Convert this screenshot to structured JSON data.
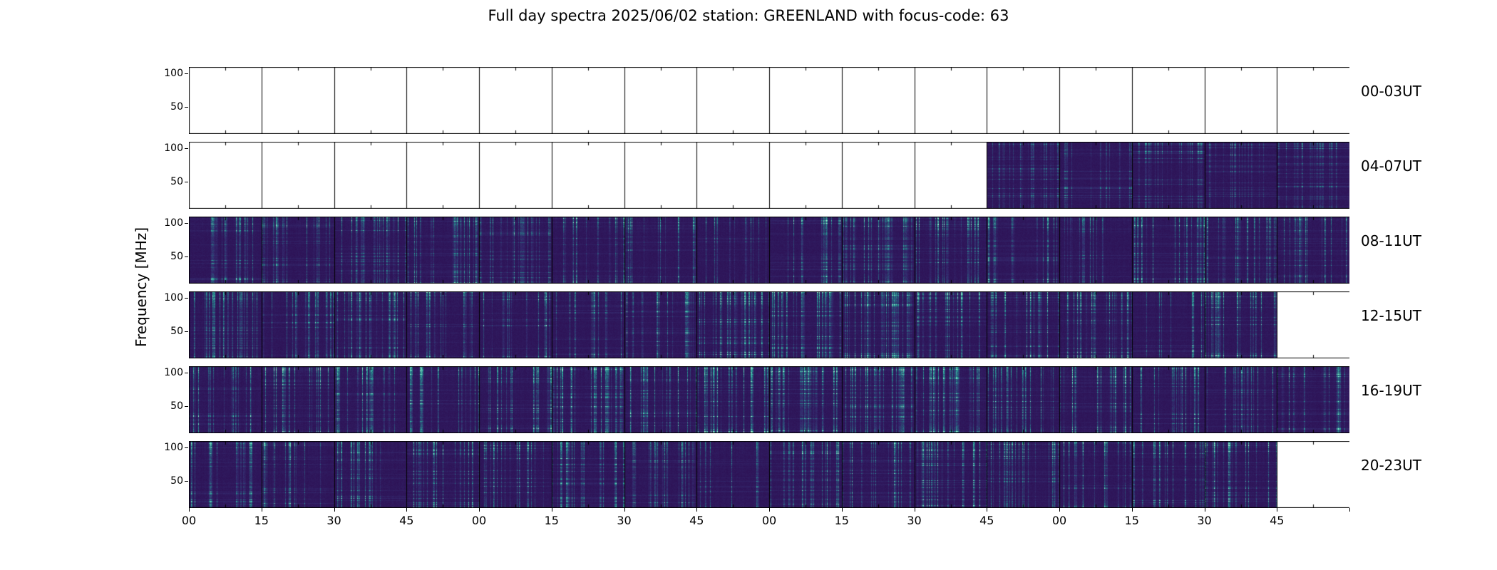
{
  "chart_data": {
    "type": "heatmap",
    "subtype": "radio-spectrogram-grid",
    "title": "Full day spectra 2025/06/02 station: GREENLAND with focus-code: 63",
    "ylabel": "Frequency [MHz]",
    "colormap": "viridis",
    "segments_per_row": 16,
    "minutes_per_segment": 15,
    "y_range": [
      10,
      110
    ],
    "y_ticks": [
      {
        "label": "100",
        "value": 100
      },
      {
        "label": "50",
        "value": 50
      }
    ],
    "x_tick_labels": [
      "00",
      "15",
      "30",
      "45",
      "00",
      "15",
      "30",
      "45",
      "00",
      "15",
      "30",
      "45",
      "00",
      "15",
      "30",
      "45"
    ],
    "rows": [
      {
        "label": "00-03UT",
        "filled_segments": []
      },
      {
        "label": "04-07UT",
        "filled_segments": [
          11,
          12,
          13,
          14,
          15
        ]
      },
      {
        "label": "08-11UT",
        "filled_segments": [
          0,
          1,
          2,
          3,
          4,
          5,
          6,
          7,
          8,
          9,
          10,
          11,
          12,
          13,
          14,
          15
        ]
      },
      {
        "label": "12-15UT",
        "filled_segments": [
          0,
          1,
          2,
          3,
          4,
          5,
          6,
          7,
          8,
          9,
          10,
          11,
          12,
          13,
          14
        ]
      },
      {
        "label": "16-19UT",
        "filled_segments": [
          0,
          1,
          2,
          3,
          4,
          5,
          6,
          7,
          8,
          9,
          10,
          11,
          12,
          13,
          14,
          15
        ]
      },
      {
        "label": "20-23UT",
        "filled_segments": [
          0,
          1,
          2,
          3,
          4,
          5,
          6,
          7,
          8,
          9,
          10,
          11,
          12,
          13,
          14
        ]
      }
    ],
    "colors": {
      "background": "#ffffff",
      "empty_panel": "#ffffff",
      "border": "#000000",
      "spectrogram_dark": "#2e1659",
      "spectrogram_highlight": "#2db8a5"
    }
  }
}
